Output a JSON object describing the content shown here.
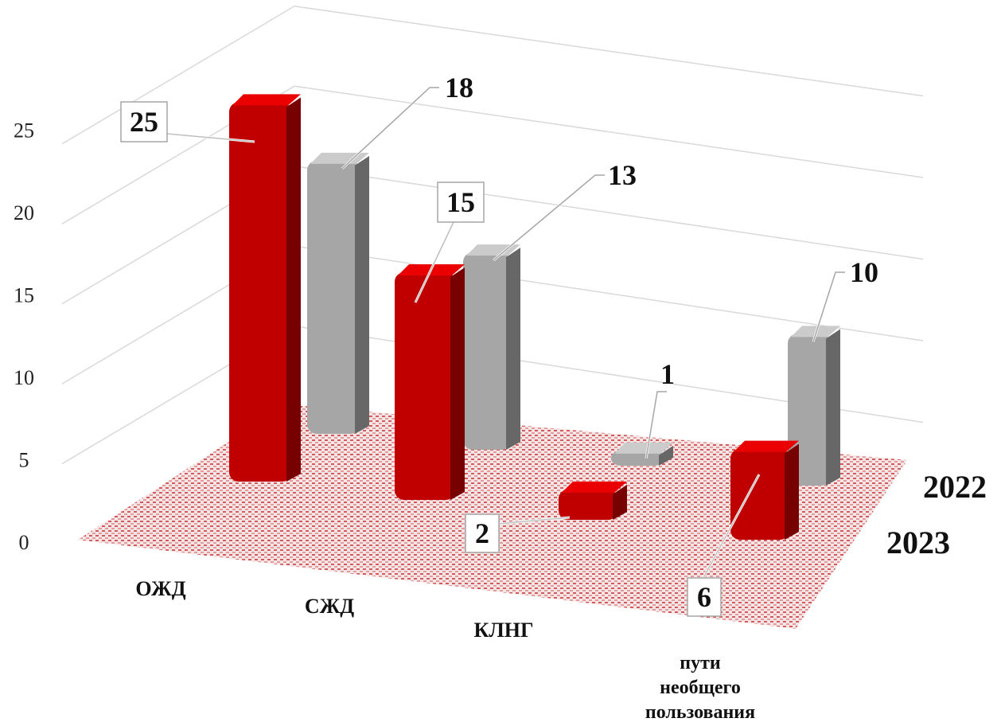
{
  "chart_data": {
    "type": "bar",
    "title": "",
    "categories": [
      "ОЖД",
      "СЖД",
      "КЛНГ",
      "пути необщего пользования"
    ],
    "series": [
      {
        "name": "2022",
        "color": "#a6a6a6",
        "values": [
          18,
          13,
          1,
          10
        ]
      },
      {
        "name": "2023",
        "color": "#c00000",
        "values": [
          25,
          15,
          2,
          6
        ]
      }
    ],
    "yticks": [
      0,
      5,
      10,
      15,
      20,
      25
    ],
    "ylim": [
      0,
      25
    ],
    "grid": true,
    "legend": "depth axis (right)",
    "floor_color": "#c00000",
    "bar_style": "3d"
  }
}
